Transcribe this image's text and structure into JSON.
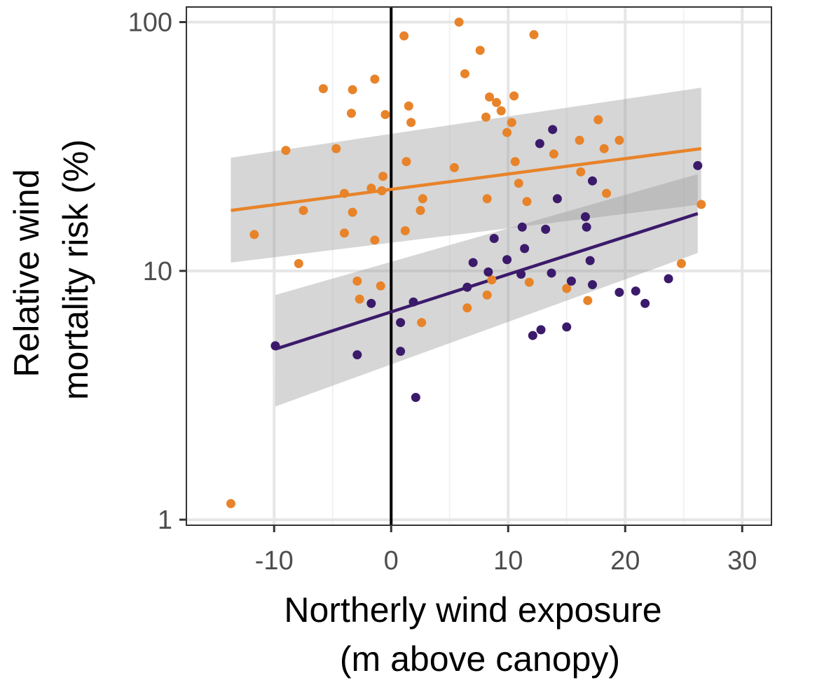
{
  "chart_data": {
    "type": "scatter",
    "title": "",
    "xlabel": [
      "Northerly wind exposure",
      "(m above canopy)"
    ],
    "ylabel": [
      "Relative wind",
      "mortality risk (%)"
    ],
    "xlim": [
      -17.5,
      32.5
    ],
    "ylim": [
      0.95,
      115
    ],
    "yscale": "log",
    "x_ticks": [
      -10,
      0,
      10,
      20,
      30
    ],
    "x_tick_labels": [
      "-10",
      "0",
      "10",
      "20",
      "30"
    ],
    "y_ticks": [
      1,
      10,
      100
    ],
    "y_tick_labels": [
      "1",
      "10",
      "100"
    ],
    "grid": true,
    "reference_vline_x": 0,
    "legend": "none",
    "series": [
      {
        "name": "orange",
        "color": "#E8832A",
        "points": [
          [
            -13.7,
            1.16
          ],
          [
            -11.7,
            14.0
          ],
          [
            -9.0,
            30.5
          ],
          [
            -7.9,
            10.7
          ],
          [
            -7.5,
            17.5
          ],
          [
            -5.8,
            54.0
          ],
          [
            -4.7,
            31.0
          ],
          [
            -4.0,
            20.5
          ],
          [
            -4.0,
            14.2
          ],
          [
            -3.4,
            43.0
          ],
          [
            -3.3,
            53.5
          ],
          [
            -3.3,
            17.2
          ],
          [
            -2.9,
            9.1
          ],
          [
            -2.7,
            7.7
          ],
          [
            -1.7,
            21.5
          ],
          [
            -1.4,
            59.0
          ],
          [
            -1.4,
            13.3
          ],
          [
            -0.9,
            8.7
          ],
          [
            -0.8,
            21.0
          ],
          [
            -0.7,
            24.0
          ],
          [
            -0.5,
            42.5
          ],
          [
            1.1,
            88.0
          ],
          [
            1.2,
            14.5
          ],
          [
            1.3,
            27.5
          ],
          [
            1.5,
            46.0
          ],
          [
            1.7,
            39.5
          ],
          [
            2.5,
            17.5
          ],
          [
            2.6,
            6.2
          ],
          [
            2.7,
            19.5
          ],
          [
            5.4,
            26.0
          ],
          [
            5.8,
            100.0
          ],
          [
            6.3,
            62.0
          ],
          [
            6.5,
            7.1
          ],
          [
            7.6,
            77.0
          ],
          [
            8.1,
            41.5
          ],
          [
            8.2,
            19.5
          ],
          [
            8.2,
            8.0
          ],
          [
            8.4,
            50.0
          ],
          [
            8.6,
            9.2
          ],
          [
            9.0,
            47.5
          ],
          [
            9.4,
            44.0
          ],
          [
            9.9,
            36.0
          ],
          [
            10.3,
            39.5
          ],
          [
            10.5,
            50.5
          ],
          [
            10.6,
            27.5
          ],
          [
            10.9,
            22.5
          ],
          [
            11.6,
            19.0
          ],
          [
            11.8,
            9.0
          ],
          [
            12.2,
            89.0
          ],
          [
            15.0,
            8.5
          ],
          [
            13.9,
            29.5
          ],
          [
            16.1,
            33.5
          ],
          [
            16.2,
            25.0
          ],
          [
            16.8,
            7.6
          ],
          [
            17.7,
            40.5
          ],
          [
            18.2,
            31.0
          ],
          [
            18.4,
            20.5
          ],
          [
            19.5,
            33.5
          ],
          [
            24.8,
            10.7
          ],
          [
            26.5,
            18.5
          ]
        ],
        "trend": {
          "x": [
            -13.7,
            26.5
          ],
          "y": [
            17.5,
            31.0
          ]
        },
        "ci_band": {
          "x": [
            -13.7,
            26.5
          ],
          "lower": [
            10.8,
            18.5
          ],
          "upper": [
            28.5,
            54.5
          ]
        }
      },
      {
        "name": "purple",
        "color": "#3B1A6B",
        "points": [
          [
            -9.9,
            5.0
          ],
          [
            -2.9,
            4.6
          ],
          [
            -1.7,
            7.4
          ],
          [
            0.8,
            6.2
          ],
          [
            0.8,
            4.75
          ],
          [
            1.9,
            7.5
          ],
          [
            2.1,
            3.1
          ],
          [
            6.5,
            8.6
          ],
          [
            7.0,
            10.8
          ],
          [
            8.3,
            9.9
          ],
          [
            8.8,
            13.5
          ],
          [
            9.9,
            11.1
          ],
          [
            11.1,
            9.7
          ],
          [
            11.2,
            15.0
          ],
          [
            11.4,
            12.3
          ],
          [
            12.1,
            5.5
          ],
          [
            12.7,
            32.5
          ],
          [
            12.8,
            5.8
          ],
          [
            13.2,
            14.7
          ],
          [
            13.7,
            9.8
          ],
          [
            13.8,
            37.0
          ],
          [
            14.2,
            19.5
          ],
          [
            15.0,
            5.95
          ],
          [
            15.4,
            9.1
          ],
          [
            16.6,
            16.5
          ],
          [
            16.7,
            15.0
          ],
          [
            17.0,
            11.0
          ],
          [
            17.2,
            23.0
          ],
          [
            17.2,
            8.8
          ],
          [
            19.5,
            8.2
          ],
          [
            20.9,
            8.3
          ],
          [
            21.7,
            7.4
          ],
          [
            23.7,
            9.3
          ],
          [
            26.2,
            26.5
          ]
        ],
        "trend": {
          "x": [
            -9.9,
            26.2
          ],
          "y": [
            4.85,
            17.0
          ]
        },
        "ci_band": {
          "x": [
            -9.9,
            26.2
          ],
          "lower": [
            2.85,
            11.8
          ],
          "upper": [
            8.0,
            24.5
          ]
        }
      }
    ]
  }
}
